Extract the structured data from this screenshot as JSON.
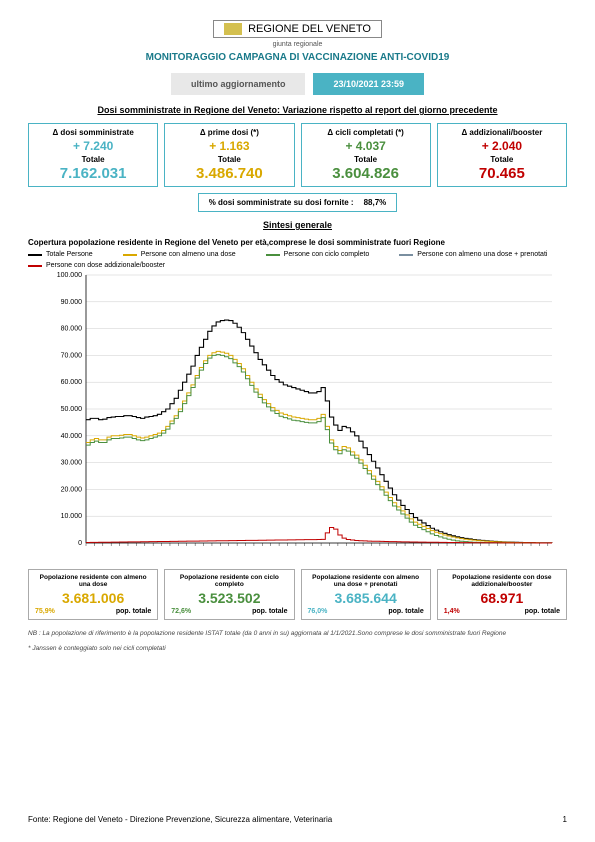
{
  "header": {
    "logo_text": "REGIONE DEL VENETO",
    "logo_sub": "giunta regionale",
    "title": "MONITORAGGIO CAMPAGNA DI VACCINAZIONE ANTI-COVID19",
    "update_label": "ultimo aggiornamento",
    "update_date": "23/10/2021 23:59"
  },
  "section1_title": "Dosi somministrate in Regione del Veneto: Variazione rispetto al report del giorno precedente",
  "stats": [
    {
      "label": "Δ dosi somministrate",
      "delta": "+ 7.240",
      "total_label": "Totale",
      "total": "7.162.031",
      "color": "#4ab3c4"
    },
    {
      "label": "Δ prime dosi (*)",
      "delta": "+ 1.163",
      "total_label": "Totale",
      "total": "3.486.740",
      "color": "#d9a800"
    },
    {
      "label": "Δ cicli completati (*)",
      "delta": "+ 4.037",
      "total_label": "Totale",
      "total": "3.604.826",
      "color": "#4a8f3e"
    },
    {
      "label": "Δ addizionali/booster",
      "delta": "+ 2.040",
      "total_label": "Totale",
      "total": "70.465",
      "color": "#c00000"
    }
  ],
  "pct": {
    "label": "% dosi somministrate su dosi fornite :",
    "value": "88,7%"
  },
  "section2_title": "Sintesi generale",
  "chart": {
    "title": "Copertura popolazione residente in Regione del Veneto per età,comprese le dosi somministrate fuori Regione",
    "legend": [
      {
        "label": "Totale Persone",
        "color": "#000000"
      },
      {
        "label": "Persone con almeno una dose",
        "color": "#d9a800"
      },
      {
        "label": "Persone con ciclo completo",
        "color": "#4a8f3e"
      },
      {
        "label": "Persone con almeno una dose + prenotati",
        "color": "#7a8fa0"
      },
      {
        "label": "Persone con dose addizionale/booster",
        "color": "#c00000"
      }
    ],
    "ylim": [
      0,
      100000
    ],
    "ytick_step": 10000,
    "yticks": [
      "0",
      "10.000",
      "20.000",
      "30.000",
      "40.000",
      "50.000",
      "60.000",
      "70.000",
      "80.000",
      "90.000",
      "100.000"
    ],
    "grid_color": "#cccccc",
    "background_color": "#ffffff",
    "series": {
      "totale": {
        "color": "#000000",
        "values": [
          46000,
          46500,
          46500,
          46000,
          46200,
          46800,
          47000,
          47200,
          47200,
          47500,
          47500,
          47200,
          46800,
          46500,
          47000,
          47200,
          47500,
          48000,
          49000,
          50000,
          52000,
          54000,
          57000,
          60000,
          63000,
          66000,
          70000,
          73000,
          76000,
          79000,
          81000,
          82500,
          83000,
          83200,
          83000,
          82000,
          80500,
          78500,
          76000,
          73500,
          71000,
          68500,
          66500,
          64500,
          62500,
          61000,
          60000,
          59000,
          58500,
          58000,
          57500,
          57000,
          56500,
          56000,
          56000,
          56500,
          58000,
          53000,
          47000,
          44000,
          42000,
          43500,
          43000,
          41500,
          40000,
          38000,
          35500,
          33000,
          30500,
          28000,
          25500,
          23000,
          20500,
          18000,
          16000,
          14000,
          12500,
          11000,
          9500,
          8500,
          7500,
          6500,
          5500,
          4800,
          4200,
          3600,
          3100,
          2700,
          2300,
          2000,
          1700,
          1500,
          1300,
          1100,
          950,
          800,
          700,
          600,
          500,
          420,
          360,
          300,
          250,
          200,
          170,
          140,
          115,
          95,
          78,
          64,
          52,
          42
        ]
      },
      "dose1": {
        "color": "#d9a800",
        "values": [
          37500,
          38500,
          39000,
          38500,
          38500,
          39500,
          40000,
          40000,
          40200,
          40500,
          40500,
          40000,
          39500,
          39200,
          39500,
          40000,
          40500,
          41000,
          42000,
          43500,
          45500,
          47500,
          50000,
          53000,
          56000,
          59000,
          62500,
          65500,
          68000,
          70000,
          71000,
          71500,
          71200,
          70800,
          70000,
          68500,
          67000,
          65000,
          62500,
          60000,
          57500,
          55500,
          53500,
          52000,
          50500,
          49500,
          48500,
          48000,
          47500,
          47000,
          46800,
          46500,
          46200,
          46000,
          46000,
          46500,
          48000,
          43500,
          38500,
          36000,
          34500,
          36000,
          35500,
          34000,
          32800,
          31000,
          29000,
          27000,
          25000,
          23000,
          21000,
          19000,
          17000,
          15000,
          13500,
          12000,
          10500,
          9000,
          7800,
          7000,
          6200,
          5400,
          4600,
          4000,
          3500,
          3000,
          2600,
          2250,
          1900,
          1650,
          1400,
          1200,
          1050,
          900,
          780,
          660,
          560,
          480,
          410,
          340,
          290,
          240,
          200,
          160,
          135,
          110,
          90,
          75,
          62,
          50,
          40,
          33
        ]
      },
      "ciclo": {
        "color": "#4a8f3e",
        "values": [
          36500,
          37500,
          38000,
          37500,
          37500,
          38500,
          39000,
          39000,
          39200,
          39500,
          39500,
          39000,
          38500,
          38200,
          38500,
          39000,
          39500,
          40000,
          41000,
          42500,
          44500,
          46500,
          49000,
          52000,
          55000,
          58000,
          61500,
          64500,
          67000,
          69000,
          70000,
          70300,
          70000,
          69500,
          68800,
          67200,
          65800,
          63800,
          61300,
          58800,
          56300,
          54300,
          52300,
          50800,
          49300,
          48300,
          47300,
          46800,
          46300,
          45800,
          45600,
          45300,
          45000,
          44800,
          44800,
          45300,
          46800,
          42300,
          37300,
          34800,
          33300,
          34800,
          34300,
          32800,
          31600,
          29800,
          27800,
          25800,
          23800,
          21800,
          19800,
          17800,
          15800,
          13800,
          12300,
          10800,
          9300,
          7800,
          6600,
          5800,
          5000,
          4200,
          3400,
          2800,
          2300,
          1800,
          1400,
          1050,
          800,
          650,
          500,
          380,
          300,
          240,
          190,
          150,
          120,
          95,
          75,
          60,
          48,
          38,
          30,
          24,
          19,
          15,
          12,
          10,
          8,
          6,
          5,
          4
        ]
      },
      "booster": {
        "color": "#c00000",
        "values": [
          200,
          220,
          240,
          260,
          280,
          300,
          320,
          340,
          360,
          380,
          400,
          420,
          440,
          460,
          480,
          500,
          520,
          540,
          560,
          580,
          600,
          620,
          640,
          660,
          680,
          700,
          720,
          740,
          760,
          780,
          800,
          820,
          840,
          860,
          880,
          900,
          920,
          940,
          960,
          980,
          1000,
          1020,
          1040,
          1060,
          1080,
          1100,
          1120,
          1140,
          1160,
          1180,
          1200,
          1220,
          1240,
          1260,
          1280,
          1300,
          1350,
          3800,
          5800,
          5200,
          3000,
          1800,
          1300,
          1100,
          950,
          850,
          780,
          720,
          670,
          630,
          590,
          550,
          520,
          490,
          460,
          430,
          400,
          380,
          360,
          340,
          320,
          300,
          280,
          260,
          240,
          220,
          200,
          185,
          170,
          155,
          140,
          128,
          116,
          105,
          95,
          86,
          78,
          70,
          63,
          57,
          51,
          46,
          41,
          37,
          33,
          29,
          26,
          23,
          20,
          18,
          16,
          14
        ]
      }
    }
  },
  "summary": [
    {
      "label": "Popolazione residente con almeno una dose",
      "value": "3.681.006",
      "pct": "75,9%",
      "pct_label": "pop. totale",
      "color": "#d9a800"
    },
    {
      "label": "Popolazione residente con ciclo completo",
      "value": "3.523.502",
      "pct": "72,6%",
      "pct_label": "pop. totale",
      "color": "#4a8f3e"
    },
    {
      "label": "Popolazione residente con almeno una dose + prenotati",
      "value": "3.685.644",
      "pct": "76,0%",
      "pct_label": "pop. totale",
      "color": "#4ab3c4"
    },
    {
      "label": "Popolazione residente con dose addizionale/booster",
      "value": "68.971",
      "pct": "1,4%",
      "pct_label": "pop. totale",
      "color": "#c00000"
    }
  ],
  "notes": [
    "NB : La popolazione di riferimento è la popolazione residente ISTAT totale (da 0 anni in su) aggiornata  al 1/1/2021.Sono comprese le dosi somministrate fuori Regione",
    "* Janssen è conteggiato solo nei cicli completati"
  ],
  "footer": {
    "source": "Fonte: Regione del Veneto - Direzione Prevenzione, Sicurezza alimentare, Veterinaria",
    "page": "1"
  }
}
